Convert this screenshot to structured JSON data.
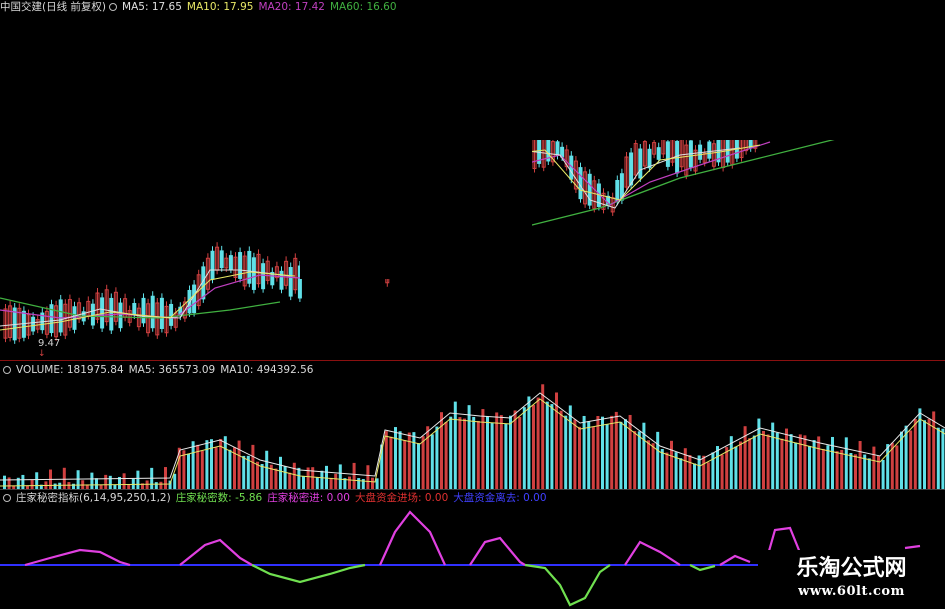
{
  "colors": {
    "ma5": "#e0e0e0",
    "ma10": "#e8e866",
    "ma20": "#c040c0",
    "ma60": "#40b040",
    "up": "#d04040",
    "down": "#60e0e8",
    "divider": "#8a1010",
    "pink": "#e040e0",
    "green": "#70e050",
    "blue": "#3030ff"
  },
  "price_panel": {
    "title": "中国交建(日线 前复权)",
    "ma5": "MA5: 17.65",
    "ma10": "MA10: 17.95",
    "ma20": "MA20: 17.42",
    "ma60": "MA60: 16.60",
    "low_label": "9.47"
  },
  "volume_panel": {
    "volume": "VOLUME: 181975.84",
    "ma5": "MA5: 365573.09",
    "ma10": "MA10: 494392.56"
  },
  "indicator_panel": {
    "name": "庄家秘密指标(6,14,95,250,1,2)",
    "secret_num": "庄家秘密数: -5.86",
    "secret_in": "庄家秘密进: 0.00",
    "big_in": "大盘资金进场: 0.00",
    "big_out": "大盘资金离去: 0.00"
  },
  "watermark": {
    "title": "乐淘公式网",
    "url": "www.60lt.com"
  }
}
